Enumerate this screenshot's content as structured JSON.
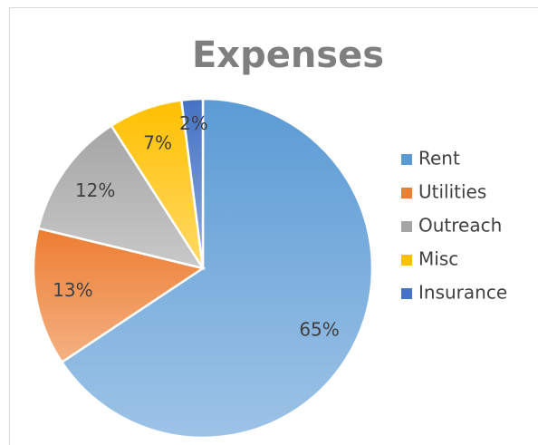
{
  "chart_data": {
    "type": "pie",
    "title": "Expenses",
    "categories": [
      "Rent",
      "Utilities",
      "Outreach",
      "Misc",
      "Insurance"
    ],
    "values": [
      65,
      13,
      12,
      7,
      2
    ],
    "value_labels": [
      "65%",
      "13%",
      "12%",
      "7%",
      "2%"
    ],
    "colors": [
      "#5b9bd5",
      "#ed7d31",
      "#a5a5a5",
      "#ffc000",
      "#4472c4"
    ],
    "legend": "right"
  }
}
